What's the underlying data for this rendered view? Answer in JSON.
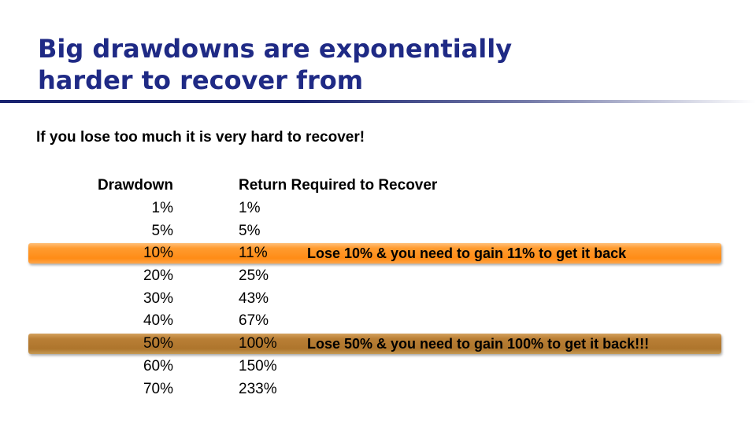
{
  "slide": {
    "title_line1": "Big drawdowns are exponentially",
    "title_line2": "harder to recover from",
    "subtitle": "If you lose too much it is very hard to recover!"
  },
  "table": {
    "headers": {
      "drawdown": "Drawdown",
      "recover": "Return Required to Recover"
    },
    "rows": [
      {
        "drawdown": "1%",
        "recover": "1%"
      },
      {
        "drawdown": "5%",
        "recover": "5%"
      },
      {
        "drawdown": "10%",
        "recover": "11%",
        "note": "Lose 10% & you need to gain 11% to get it back"
      },
      {
        "drawdown": "20%",
        "recover": "25%"
      },
      {
        "drawdown": "30%",
        "recover": "43%"
      },
      {
        "drawdown": "40%",
        "recover": "67%"
      },
      {
        "drawdown": "50%",
        "recover": "100%",
        "note": "Lose 50% & you need to gain 100% to get it back!!!"
      },
      {
        "drawdown": "60%",
        "recover": "150%"
      },
      {
        "drawdown": "70%",
        "recover": "233%"
      }
    ]
  },
  "colors": {
    "title": "#1f2a85",
    "highlight_10": "#ff8c16",
    "highlight_50": "#ae752c"
  }
}
